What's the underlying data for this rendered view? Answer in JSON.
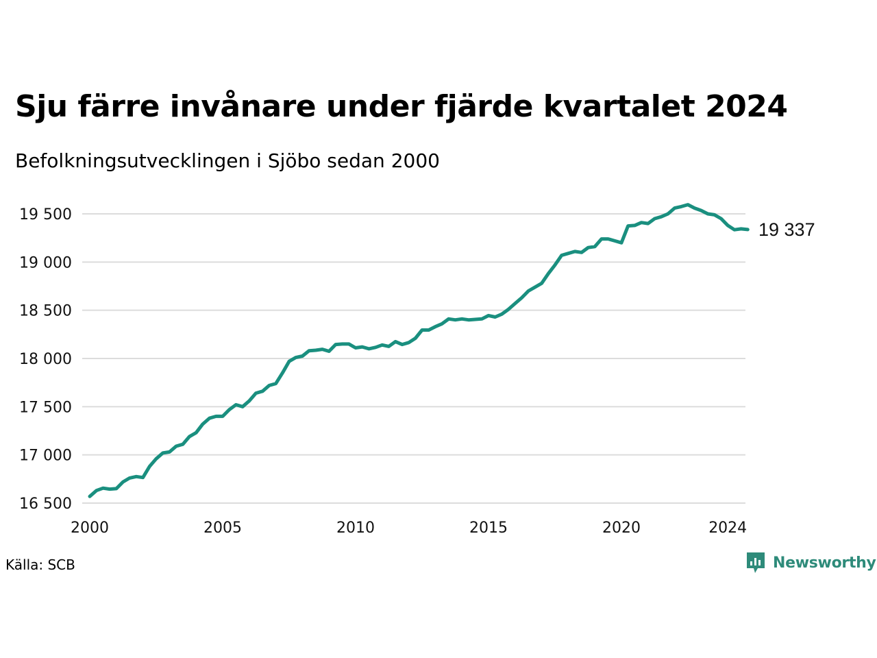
{
  "title": "Sju färre invånare under fjärde kvartalet 2024",
  "subtitle": "Befolkningsutvecklingen i Sjöbo sedan 2000",
  "source": "Källa: SCB",
  "brand": {
    "name": "Newsworthy",
    "icon": "newsworthy-logo-icon",
    "color": "#2e8b7a"
  },
  "chart_data": {
    "type": "line",
    "title": "Sju färre invånare under fjärde kvartalet 2024",
    "subtitle": "Befolkningsutvecklingen i Sjöbo sedan 2000",
    "xlabel": "",
    "ylabel": "",
    "x_ticks": [
      "2000",
      "2005",
      "2010",
      "2015",
      "2020",
      "2024"
    ],
    "y_ticks": [
      "16 500",
      "17 000",
      "17 500",
      "18 000",
      "18 500",
      "19 000",
      "19 500"
    ],
    "y_tick_values": [
      16500,
      17000,
      17500,
      18000,
      18500,
      19000,
      19500
    ],
    "ylim": [
      16500,
      19700
    ],
    "xlim": [
      2000,
      2025
    ],
    "grid": "horizontal",
    "line_color": "#1a8f7f",
    "end_label": "19 337",
    "series": [
      {
        "x": [
          2000.0,
          2000.25,
          2000.5,
          2000.75,
          2001.0,
          2001.25,
          2001.5,
          2001.75,
          2002.0,
          2002.25,
          2002.5,
          2002.75,
          2003.0,
          2003.25,
          2003.5,
          2003.75,
          2004.0,
          2004.25,
          2004.5,
          2004.75,
          2005.0,
          2005.25,
          2005.5,
          2005.75,
          2006.0,
          2006.25,
          2006.5,
          2006.75,
          2007.0,
          2007.25,
          2007.5,
          2007.75,
          2008.0,
          2008.25,
          2008.5,
          2008.75,
          2009.0,
          2009.25,
          2009.5,
          2009.75,
          2010.0,
          2010.25,
          2010.5,
          2010.75,
          2011.0,
          2011.25,
          2011.5,
          2011.75,
          2012.0,
          2012.25,
          2012.5,
          2012.75,
          2013.0,
          2013.25,
          2013.5,
          2013.75,
          2014.0,
          2014.25,
          2014.5,
          2014.75,
          2015.0,
          2015.25,
          2015.5,
          2015.75,
          2016.0,
          2016.25,
          2016.5,
          2016.75,
          2017.0,
          2017.25,
          2017.5,
          2017.75,
          2018.0,
          2018.25,
          2018.5,
          2018.75,
          2019.0,
          2019.25,
          2019.5,
          2019.75,
          2020.0,
          2020.25,
          2020.5,
          2020.75,
          2021.0,
          2021.25,
          2021.5,
          2021.75,
          2022.0,
          2022.25,
          2022.5,
          2022.75,
          2023.0,
          2023.25,
          2023.5,
          2023.75,
          2024.0,
          2024.25,
          2024.5,
          2024.75
        ],
        "values": [
          16570,
          16630,
          16655,
          16645,
          16650,
          16720,
          16760,
          16775,
          16765,
          16880,
          16960,
          17020,
          17030,
          17090,
          17110,
          17190,
          17230,
          17320,
          17380,
          17400,
          17400,
          17470,
          17520,
          17500,
          17560,
          17640,
          17660,
          17720,
          17740,
          17850,
          17970,
          18010,
          18025,
          18080,
          18085,
          18095,
          18075,
          18145,
          18150,
          18150,
          18110,
          18120,
          18100,
          18115,
          18140,
          18125,
          18175,
          18145,
          18165,
          18210,
          18295,
          18295,
          18330,
          18360,
          18410,
          18400,
          18410,
          18400,
          18405,
          18410,
          18445,
          18430,
          18460,
          18510,
          18570,
          18630,
          18700,
          18740,
          18780,
          18880,
          18970,
          19070,
          19090,
          19110,
          19100,
          19150,
          19160,
          19240,
          19240,
          19220,
          19200,
          19375,
          19380,
          19410,
          19400,
          19450,
          19470,
          19500,
          19560,
          19575,
          19595,
          19560,
          19535,
          19500,
          19490,
          19450,
          19380,
          19335,
          19344,
          19337
        ]
      }
    ]
  }
}
